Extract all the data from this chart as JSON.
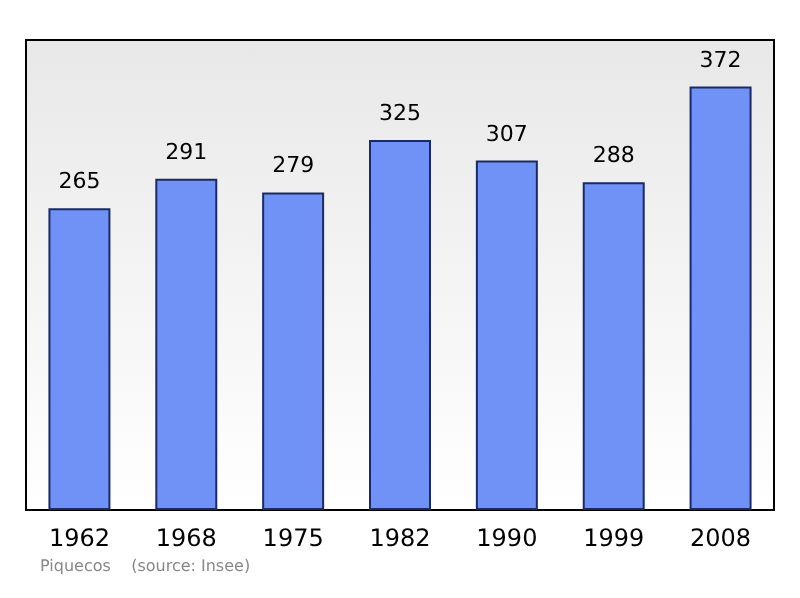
{
  "chart_data": {
    "type": "bar",
    "categories": [
      "1962",
      "1968",
      "1975",
      "1982",
      "1990",
      "1999",
      "2008"
    ],
    "values": [
      265,
      291,
      279,
      325,
      307,
      288,
      372
    ],
    "color": "#7092f7",
    "data_labels": true,
    "annotations": [
      "Piquecos    (source: Insee)"
    ]
  }
}
